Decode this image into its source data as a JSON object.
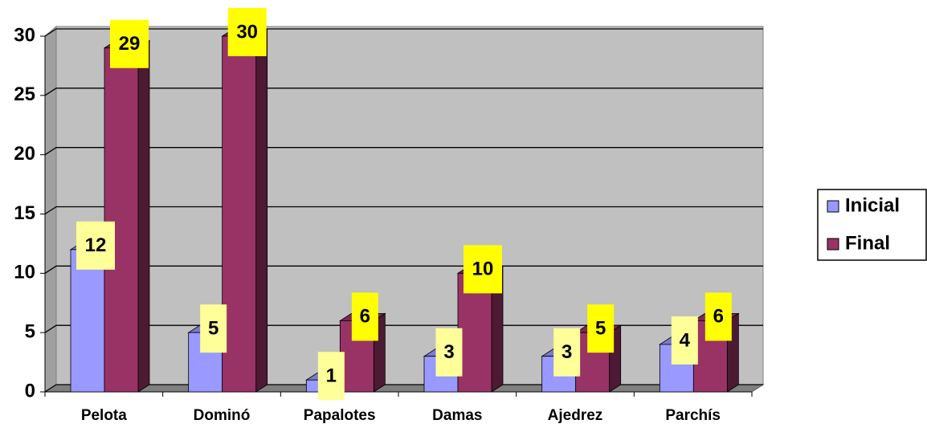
{
  "chart_data": {
    "type": "bar",
    "categories": [
      "Pelota",
      "Dominó",
      "Papalotes",
      "Damas",
      "Ajedrez",
      "Parchís"
    ],
    "series": [
      {
        "name": "Inicial",
        "color": "#9999ff",
        "values": [
          12,
          5,
          1,
          3,
          3,
          4
        ]
      },
      {
        "name": "Final",
        "color": "#993366",
        "values": [
          29,
          30,
          6,
          10,
          5,
          6
        ]
      }
    ],
    "ylim": [
      0,
      30
    ],
    "yticks": [
      0,
      5,
      10,
      15,
      20,
      25,
      30
    ],
    "grid": true,
    "legend": "right"
  }
}
